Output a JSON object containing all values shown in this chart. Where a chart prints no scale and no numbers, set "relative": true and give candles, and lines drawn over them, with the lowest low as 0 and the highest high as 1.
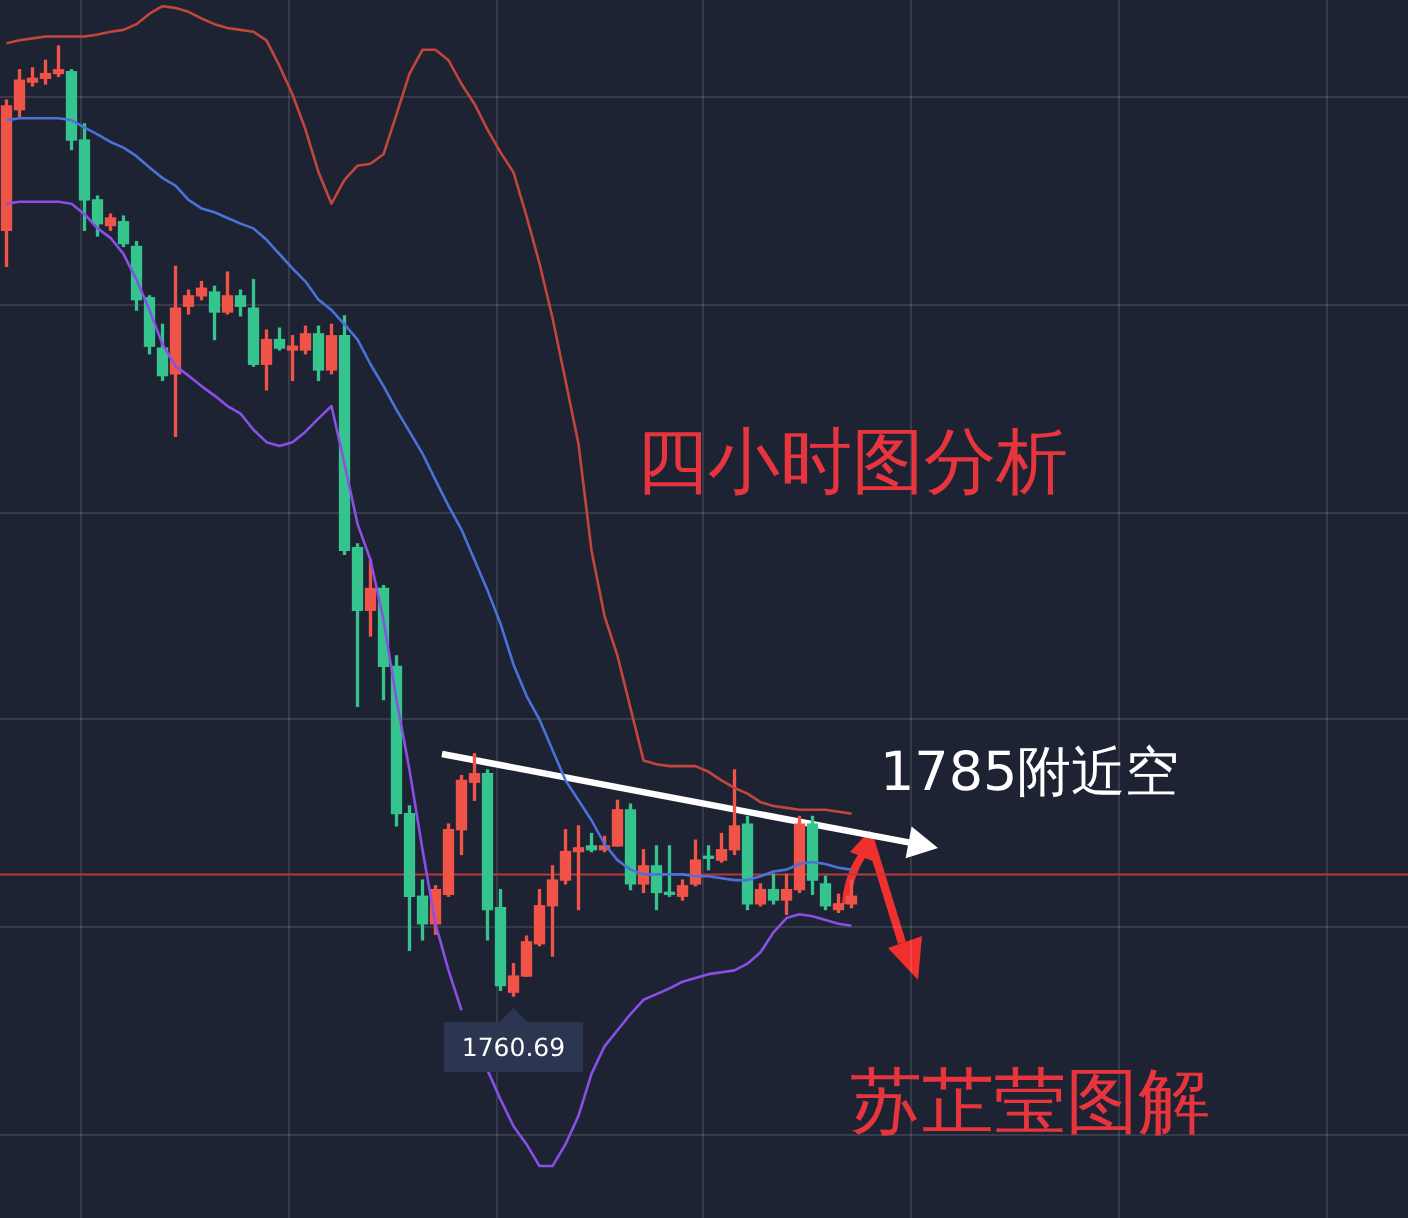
{
  "chart_data": {
    "type": "candlestick",
    "relative": true,
    "grid": true,
    "categories": [
      null,
      null,
      null,
      null,
      null,
      null,
      null,
      null,
      null,
      null,
      null,
      null,
      null,
      null,
      null,
      null,
      null,
      null,
      null,
      null,
      null,
      null,
      null,
      null,
      null,
      null,
      null,
      null,
      null,
      null,
      null,
      null,
      null,
      null,
      null,
      null,
      null,
      null,
      null,
      null,
      null,
      null,
      null,
      null,
      null,
      null,
      null,
      null,
      null,
      null,
      null,
      null,
      null,
      null,
      null,
      null,
      null,
      null,
      null,
      null,
      null,
      null,
      null,
      null,
      null,
      null
    ],
    "ohlc": [
      [
        0.806,
        0.943,
        0.768,
        0.937
      ],
      [
        0.933,
        0.975,
        0.926,
        0.964
      ],
      [
        0.962,
        0.977,
        0.958,
        0.966
      ],
      [
        0.966,
        0.985,
        0.96,
        0.971
      ],
      [
        0.971,
        1.0,
        0.968,
        0.975
      ],
      [
        0.973,
        0.975,
        0.891,
        0.901
      ],
      [
        0.901,
        0.918,
        0.806,
        0.838
      ],
      [
        0.838,
        0.842,
        0.8,
        0.813
      ],
      [
        0.811,
        0.823,
        0.806,
        0.819
      ],
      [
        0.815,
        0.821,
        0.789,
        0.792
      ],
      [
        0.789,
        0.794,
        0.722,
        0.733
      ],
      [
        0.735,
        0.737,
        0.676,
        0.684
      ],
      [
        0.682,
        0.707,
        0.648,
        0.653
      ],
      [
        0.655,
        0.768,
        0.589,
        0.724
      ],
      [
        0.726,
        0.743,
        0.718,
        0.737
      ],
      [
        0.737,
        0.752,
        0.733,
        0.745
      ],
      [
        0.741,
        0.747,
        0.691,
        0.72
      ],
      [
        0.72,
        0.762,
        0.718,
        0.737
      ],
      [
        0.737,
        0.743,
        0.716,
        0.726
      ],
      [
        0.724,
        0.754,
        0.663,
        0.665
      ],
      [
        0.665,
        0.701,
        0.638,
        0.691
      ],
      [
        0.691,
        0.703,
        0.68,
        0.682
      ],
      [
        0.68,
        0.695,
        0.648,
        0.684
      ],
      [
        0.68,
        0.705,
        0.676,
        0.697
      ],
      [
        0.697,
        0.705,
        0.648,
        0.659
      ],
      [
        0.659,
        0.707,
        0.655,
        0.695
      ],
      [
        0.695,
        0.716,
        0.465,
        0.469
      ],
      [
        0.472,
        0.476,
        0.305,
        0.406
      ],
      [
        0.406,
        0.459,
        0.379,
        0.429
      ],
      [
        0.429,
        0.432,
        0.312,
        0.347
      ],
      [
        0.347,
        0.358,
        0.179,
        0.192
      ],
      [
        0.192,
        0.2,
        0.048,
        0.105
      ],
      [
        0.105,
        0.122,
        0.059,
        0.076
      ],
      [
        0.076,
        0.116,
        0.065,
        0.112
      ],
      [
        0.107,
        0.181,
        0.105,
        0.175
      ],
      [
        0.175,
        0.232,
        0.149,
        0.227
      ],
      [
        0.225,
        0.255,
        0.206,
        0.234
      ],
      [
        0.234,
        0.238,
        0.059,
        0.091
      ],
      [
        0.093,
        0.112,
        0.006,
        0.011
      ],
      [
        0.004,
        0.034,
        0,
        0.021
      ],
      [
        0.021,
        0.063,
        0.021,
        0.057
      ],
      [
        0.055,
        0.112,
        0.053,
        0.095
      ],
      [
        0.095,
        0.137,
        0.042,
        0.122
      ],
      [
        0.122,
        0.175,
        0.118,
        0.152
      ],
      [
        0.152,
        0.179,
        0.091,
        0.156
      ],
      [
        0.158,
        0.171,
        0.152,
        0.154
      ],
      [
        0.154,
        0.168,
        0.152,
        0.158
      ],
      [
        0.158,
        0.206,
        0.158,
        0.196
      ],
      [
        0.196,
        0.202,
        0.112,
        0.118
      ],
      [
        0.118,
        0.154,
        0.109,
        0.137
      ],
      [
        0.137,
        0.158,
        0.091,
        0.109
      ],
      [
        0.109,
        0.158,
        0.105,
        0.107
      ],
      [
        0.105,
        0.122,
        0.101,
        0.116
      ],
      [
        0.118,
        0.164,
        0.116,
        0.143
      ],
      [
        0.147,
        0.158,
        0.133,
        0.145
      ],
      [
        0.143,
        0.171,
        0.141,
        0.154
      ],
      [
        0.154,
        0.238,
        0.149,
        0.179
      ],
      [
        0.181,
        0.189,
        0.091,
        0.097
      ],
      [
        0.097,
        0.118,
        0.095,
        0.112
      ],
      [
        0.112,
        0.128,
        0.097,
        0.101
      ],
      [
        0.101,
        0.128,
        0.086,
        0.112
      ],
      [
        0.112,
        0.189,
        0.109,
        0.181
      ],
      [
        0.181,
        0.189,
        0.107,
        0.122
      ],
      [
        0.118,
        0.126,
        0.091,
        0.095
      ],
      [
        0.091,
        0.107,
        0.088,
        0.097
      ],
      [
        0.097,
        0.122,
        0.093,
        0.105
      ]
    ],
    "colors": [
      "#f05348",
      "#f05348",
      "#f05348",
      "#f05348",
      "#f05348",
      "#35c48d",
      "#35c48d",
      "#35c48d",
      "#f05348",
      "#35c48d",
      "#35c48d",
      "#35c48d",
      "#35c48d",
      "#f05348",
      "#f05348",
      "#f05348",
      "#35c48d",
      "#f05348",
      "#35c48d",
      "#35c48d",
      "#f05348",
      "#35c48d",
      "#f05348",
      "#f05348",
      "#35c48d",
      "#f05348",
      "#35c48d",
      "#35c48d",
      "#f05348",
      "#35c48d",
      "#35c48d",
      "#35c48d",
      "#35c48d",
      "#f05348",
      "#f05348",
      "#f05348",
      "#f05348",
      "#35c48d",
      "#35c48d",
      "#f05348",
      "#f05348",
      "#f05348",
      "#f05348",
      "#f05348",
      "#f05348",
      "#35c48d",
      "#f05348",
      "#f05348",
      "#35c48d",
      "#f05348",
      "#35c48d",
      "#35c48d",
      "#f05348",
      "#f05348",
      "#35c48d",
      "#f05348",
      "#f05348",
      "#35c48d",
      "#f05348",
      "#35c48d",
      "#f05348",
      "#f05348",
      "#35c48d",
      "#35c48d",
      "#f05348",
      "#f05348"
    ],
    "series": [
      {
        "type": "line",
        "color": "#c4453c",
        "values": [
          1.003,
          1.006,
          1.008,
          1.01,
          1.01,
          1.01,
          1.01,
          1.012,
          1.015,
          1.017,
          1.023,
          1.034,
          1.042,
          1.04,
          1.036,
          1.029,
          1.023,
          1.019,
          1.017,
          1.015,
          1.006,
          0.979,
          0.949,
          0.912,
          0.867,
          0.834,
          0.859,
          0.874,
          0.876,
          0.886,
          0.928,
          0.971,
          0.996,
          0.996,
          0.985,
          0.96,
          0.939,
          0.912,
          0.888,
          0.867,
          0.821,
          0.771,
          0.714,
          0.648,
          0.581,
          0.469,
          0.4,
          0.358,
          0.303,
          0.248,
          0.244,
          0.242,
          0.242,
          0.242,
          0.236,
          0.227,
          0.219,
          0.213,
          0.204,
          0.2,
          0.198,
          0.196,
          0.196,
          0.196,
          0.194,
          0.192
        ]
      },
      {
        "type": "line",
        "color": "#4a72d8",
        "values": [
          0.922,
          0.924,
          0.924,
          0.924,
          0.924,
          0.922,
          0.914,
          0.907,
          0.899,
          0.893,
          0.884,
          0.872,
          0.861,
          0.853,
          0.838,
          0.829,
          0.825,
          0.819,
          0.813,
          0.808,
          0.796,
          0.781,
          0.766,
          0.752,
          0.733,
          0.722,
          0.707,
          0.691,
          0.665,
          0.642,
          0.617,
          0.594,
          0.571,
          0.543,
          0.516,
          0.491,
          0.459,
          0.427,
          0.392,
          0.349,
          0.316,
          0.291,
          0.259,
          0.227,
          0.206,
          0.185,
          0.16,
          0.143,
          0.133,
          0.128,
          0.128,
          0.128,
          0.128,
          0.126,
          0.126,
          0.124,
          0.122,
          0.122,
          0.126,
          0.131,
          0.133,
          0.139,
          0.141,
          0.139,
          0.135,
          0.133
        ]
      },
      {
        "type": "line",
        "color": "#8a4fe6",
        "values": [
          0.834,
          0.836,
          0.836,
          0.836,
          0.836,
          0.834,
          0.823,
          0.808,
          0.798,
          0.781,
          0.754,
          0.722,
          0.686,
          0.663,
          0.653,
          0.642,
          0.632,
          0.621,
          0.613,
          0.596,
          0.583,
          0.579,
          0.583,
          0.594,
          0.608,
          0.621,
          0.56,
          0.497,
          0.459,
          0.396,
          0.312,
          0.238,
          0.154,
          0.076,
          0.027,
          -0.015,
          null,
          -0.078,
          -0.109,
          -0.137,
          -0.156,
          -0.179,
          -0.179,
          -0.156,
          -0.126,
          -0.082,
          -0.053,
          -0.036,
          -0.019,
          -0.004,
          0.002,
          0.008,
          0.015,
          0.019,
          0.023,
          0.025,
          0.027,
          0.034,
          0.046,
          0.067,
          0.082,
          0.086,
          0.084,
          0.08,
          0.076,
          0.074
        ]
      }
    ],
    "ref_lines": [
      {
        "axis": "y",
        "value": 0.128,
        "color": "#b8383c"
      }
    ],
    "annotations": [
      "四小时图分析",
      "1785附近空",
      {
        "text": "1760.69",
        "y": 0
      },
      "苏芷莹图解"
    ]
  }
}
